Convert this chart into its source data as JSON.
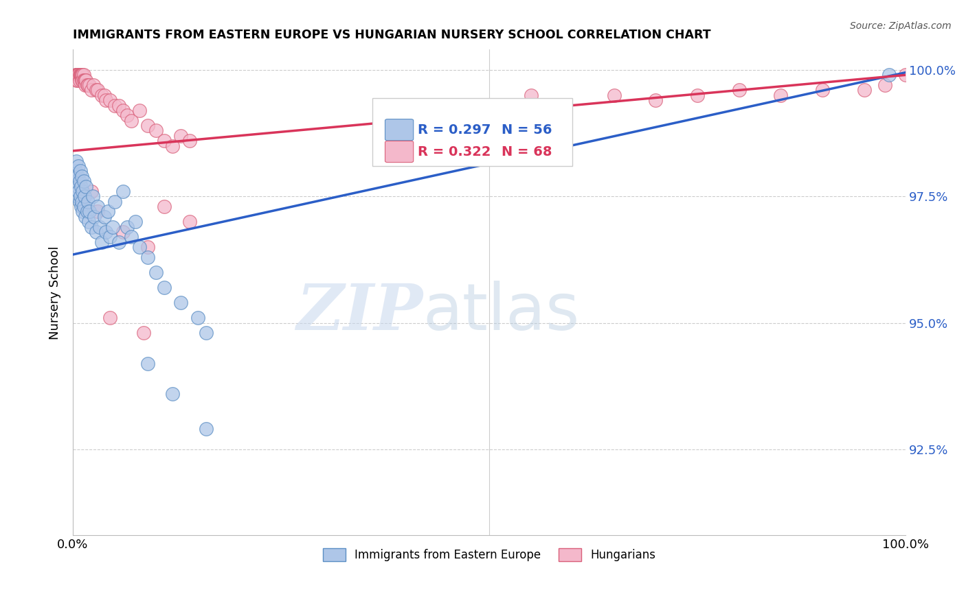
{
  "title": "IMMIGRANTS FROM EASTERN EUROPE VS HUNGARIAN NURSERY SCHOOL CORRELATION CHART",
  "source": "Source: ZipAtlas.com",
  "ylabel": "Nursery School",
  "xmin": 0.0,
  "xmax": 1.0,
  "ymin": 0.908,
  "ymax": 1.004,
  "yticks": [
    0.925,
    0.95,
    0.975,
    1.0
  ],
  "ytick_labels": [
    "92.5%",
    "95.0%",
    "97.5%",
    "100.0%"
  ],
  "xticks": [
    0.0,
    0.2,
    0.4,
    0.6,
    0.8,
    1.0
  ],
  "xtick_labels": [
    "0.0%",
    "",
    "",
    "",
    "",
    "100.0%"
  ],
  "blue_scatter": [
    [
      0.003,
      0.98
    ],
    [
      0.004,
      0.982
    ],
    [
      0.005,
      0.978
    ],
    [
      0.005,
      0.975
    ],
    [
      0.006,
      0.979
    ],
    [
      0.006,
      0.977
    ],
    [
      0.007,
      0.981
    ],
    [
      0.007,
      0.976
    ],
    [
      0.008,
      0.978
    ],
    [
      0.008,
      0.974
    ],
    [
      0.009,
      0.98
    ],
    [
      0.009,
      0.975
    ],
    [
      0.01,
      0.977
    ],
    [
      0.01,
      0.973
    ],
    [
      0.011,
      0.979
    ],
    [
      0.011,
      0.974
    ],
    [
      0.012,
      0.976
    ],
    [
      0.012,
      0.972
    ],
    [
      0.013,
      0.978
    ],
    [
      0.013,
      0.973
    ],
    [
      0.014,
      0.975
    ],
    [
      0.015,
      0.971
    ],
    [
      0.016,
      0.977
    ],
    [
      0.017,
      0.972
    ],
    [
      0.018,
      0.974
    ],
    [
      0.019,
      0.97
    ],
    [
      0.02,
      0.972
    ],
    [
      0.022,
      0.969
    ],
    [
      0.024,
      0.975
    ],
    [
      0.026,
      0.971
    ],
    [
      0.028,
      0.968
    ],
    [
      0.03,
      0.973
    ],
    [
      0.032,
      0.969
    ],
    [
      0.035,
      0.966
    ],
    [
      0.038,
      0.971
    ],
    [
      0.04,
      0.968
    ],
    [
      0.042,
      0.972
    ],
    [
      0.045,
      0.967
    ],
    [
      0.048,
      0.969
    ],
    [
      0.05,
      0.974
    ],
    [
      0.055,
      0.966
    ],
    [
      0.06,
      0.976
    ],
    [
      0.065,
      0.969
    ],
    [
      0.07,
      0.967
    ],
    [
      0.075,
      0.97
    ],
    [
      0.08,
      0.965
    ],
    [
      0.09,
      0.963
    ],
    [
      0.1,
      0.96
    ],
    [
      0.11,
      0.957
    ],
    [
      0.13,
      0.954
    ],
    [
      0.15,
      0.951
    ],
    [
      0.16,
      0.948
    ],
    [
      0.09,
      0.942
    ],
    [
      0.12,
      0.936
    ],
    [
      0.16,
      0.929
    ],
    [
      0.98,
      0.999
    ]
  ],
  "pink_scatter": [
    [
      0.003,
      0.999
    ],
    [
      0.004,
      0.999
    ],
    [
      0.004,
      0.998
    ],
    [
      0.005,
      0.999
    ],
    [
      0.005,
      0.999
    ],
    [
      0.006,
      0.999
    ],
    [
      0.006,
      0.998
    ],
    [
      0.007,
      0.999
    ],
    [
      0.007,
      0.999
    ],
    [
      0.008,
      0.999
    ],
    [
      0.008,
      0.998
    ],
    [
      0.009,
      0.999
    ],
    [
      0.009,
      0.999
    ],
    [
      0.01,
      0.999
    ],
    [
      0.01,
      0.999
    ],
    [
      0.01,
      0.999
    ],
    [
      0.011,
      0.999
    ],
    [
      0.011,
      0.999
    ],
    [
      0.011,
      0.998
    ],
    [
      0.012,
      0.999
    ],
    [
      0.012,
      0.998
    ],
    [
      0.013,
      0.999
    ],
    [
      0.013,
      0.998
    ],
    [
      0.014,
      0.998
    ],
    [
      0.015,
      0.998
    ],
    [
      0.015,
      0.997
    ],
    [
      0.016,
      0.998
    ],
    [
      0.017,
      0.997
    ],
    [
      0.018,
      0.997
    ],
    [
      0.02,
      0.997
    ],
    [
      0.022,
      0.996
    ],
    [
      0.025,
      0.997
    ],
    [
      0.028,
      0.996
    ],
    [
      0.03,
      0.996
    ],
    [
      0.035,
      0.995
    ],
    [
      0.038,
      0.995
    ],
    [
      0.04,
      0.994
    ],
    [
      0.045,
      0.994
    ],
    [
      0.05,
      0.993
    ],
    [
      0.055,
      0.993
    ],
    [
      0.06,
      0.992
    ],
    [
      0.065,
      0.991
    ],
    [
      0.07,
      0.99
    ],
    [
      0.08,
      0.992
    ],
    [
      0.09,
      0.989
    ],
    [
      0.1,
      0.988
    ],
    [
      0.11,
      0.986
    ],
    [
      0.12,
      0.985
    ],
    [
      0.13,
      0.987
    ],
    [
      0.14,
      0.986
    ],
    [
      0.022,
      0.976
    ],
    [
      0.03,
      0.972
    ],
    [
      0.06,
      0.968
    ],
    [
      0.09,
      0.965
    ],
    [
      0.11,
      0.973
    ],
    [
      0.14,
      0.97
    ],
    [
      0.045,
      0.951
    ],
    [
      0.085,
      0.948
    ],
    [
      0.55,
      0.995
    ],
    [
      0.65,
      0.995
    ],
    [
      0.7,
      0.994
    ],
    [
      0.75,
      0.995
    ],
    [
      0.8,
      0.996
    ],
    [
      0.85,
      0.995
    ],
    [
      0.9,
      0.996
    ],
    [
      0.95,
      0.996
    ],
    [
      0.975,
      0.997
    ],
    [
      1.0,
      0.999
    ]
  ],
  "blue_color": "#aec6e8",
  "blue_edge_color": "#5b8ec4",
  "pink_color": "#f4b8cb",
  "pink_edge_color": "#d9607a",
  "blue_line_color": "#2b5ec7",
  "pink_line_color": "#d9345a",
  "blue_trend": [
    0.0,
    1.0,
    0.9635,
    0.9995
  ],
  "pink_trend": [
    0.0,
    1.0,
    0.984,
    0.999
  ],
  "legend_R_blue": "R = 0.297",
  "legend_N_blue": "N = 56",
  "legend_R_pink": "R = 0.322",
  "legend_N_pink": "N = 68",
  "legend_label_blue": "Immigrants from Eastern Europe",
  "legend_label_pink": "Hungarians",
  "watermark_zip": "ZIP",
  "watermark_atlas": "atlas",
  "background_color": "#ffffff",
  "grid_color": "#cccccc"
}
